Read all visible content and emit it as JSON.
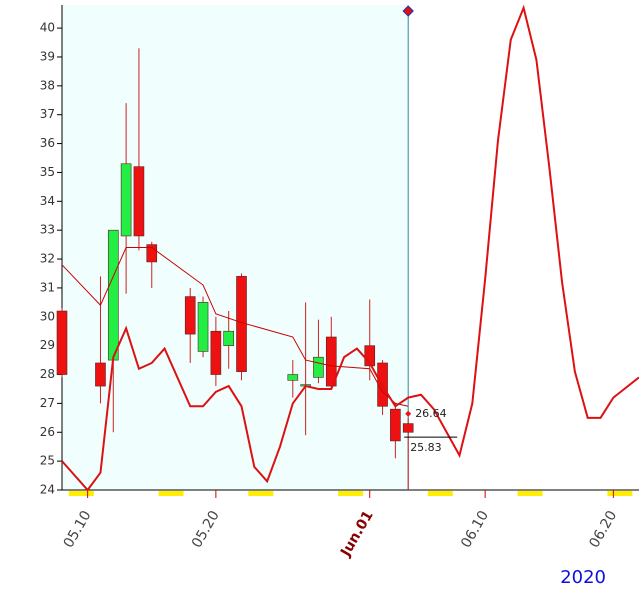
{
  "chart_data": {
    "type": "candlestick",
    "year_label": "2020",
    "xlim": [
      "2020-05-08",
      "2020-06-22"
    ],
    "xticks": [
      {
        "value": "2020-05-10",
        "label": "05.10"
      },
      {
        "value": "2020-05-20",
        "label": "05.20"
      },
      {
        "value": "2020-06-01",
        "label": "Jun.01"
      },
      {
        "value": "2020-06-10",
        "label": "06.10"
      },
      {
        "value": "2020-06-20",
        "label": "06.20"
      }
    ],
    "ylim": [
      24,
      40.8
    ],
    "yticks": [
      24,
      25,
      26,
      27,
      28,
      29,
      30,
      31,
      32,
      33,
      34,
      35,
      36,
      37,
      38,
      39,
      40
    ],
    "up_color": "#22ee44",
    "down_color": "#ee1111",
    "x": [
      "2020-05-08",
      "2020-05-11",
      "2020-05-12",
      "2020-05-13",
      "2020-05-14",
      "2020-05-15",
      "2020-05-18",
      "2020-05-19",
      "2020-05-20",
      "2020-05-21",
      "2020-05-22",
      "2020-05-26",
      "2020-05-27",
      "2020-05-28",
      "2020-05-29",
      "2020-06-01",
      "2020-06-02",
      "2020-06-03",
      "2020-06-04"
    ],
    "open": [
      30.2,
      28.4,
      28.5,
      32.8,
      35.2,
      32.5,
      30.7,
      28.8,
      29.5,
      29.0,
      31.4,
      27.8,
      27.6,
      27.9,
      29.3,
      29.0,
      28.4,
      26.8,
      26.3
    ],
    "high": [
      30.3,
      31.4,
      33.0,
      37.4,
      39.3,
      32.6,
      31.0,
      30.7,
      30.0,
      30.2,
      31.5,
      28.5,
      30.5,
      29.9,
      30.0,
      30.6,
      28.5,
      27.0,
      26.5
    ],
    "low": [
      27.9,
      27.0,
      26.0,
      30.8,
      32.3,
      31.0,
      28.4,
      28.6,
      27.6,
      28.2,
      27.8,
      27.2,
      25.9,
      27.7,
      27.5,
      27.8,
      26.6,
      25.1,
      24.0
    ],
    "close": [
      28.0,
      27.6,
      33.0,
      35.3,
      32.8,
      31.9,
      29.4,
      30.5,
      28.0,
      29.5,
      28.1,
      28.0,
      27.65,
      28.6,
      27.6,
      28.3,
      26.9,
      25.7,
      26.0
    ],
    "lines": [
      {
        "color": "#cc0000",
        "width": 1,
        "x": [
          "2020-05-08",
          "2020-05-11",
          "2020-05-13",
          "2020-05-15",
          "2020-05-19",
          "2020-05-20",
          "2020-05-22",
          "2020-05-26",
          "2020-05-27",
          "2020-05-29",
          "2020-06-01",
          "2020-06-02",
          "2020-06-03",
          "2020-06-04"
        ],
        "values": [
          31.8,
          30.4,
          32.4,
          32.4,
          31.1,
          30.1,
          29.8,
          29.3,
          28.5,
          28.3,
          28.2,
          27.4,
          27.0,
          26.9
        ]
      },
      {
        "color": "#dd1111",
        "width": 2,
        "x": [
          "2020-05-08",
          "2020-05-10",
          "2020-05-11",
          "2020-05-12",
          "2020-05-13",
          "2020-05-14",
          "2020-05-15",
          "2020-05-16",
          "2020-05-18",
          "2020-05-19",
          "2020-05-20",
          "2020-05-21",
          "2020-05-22",
          "2020-05-23",
          "2020-05-24",
          "2020-05-25",
          "2020-05-26",
          "2020-05-27",
          "2020-05-28",
          "2020-05-29",
          "2020-05-30",
          "2020-05-31",
          "2020-06-01",
          "2020-06-02",
          "2020-06-03",
          "2020-06-04",
          "2020-06-05",
          "2020-06-06",
          "2020-06-08",
          "2020-06-09",
          "2020-06-10",
          "2020-06-11",
          "2020-06-12",
          "2020-06-13",
          "2020-06-14",
          "2020-06-15",
          "2020-06-16",
          "2020-06-17",
          "2020-06-18",
          "2020-06-19",
          "2020-06-20",
          "2020-06-22"
        ],
        "values": [
          25.0,
          24.0,
          24.6,
          28.6,
          29.6,
          28.2,
          28.4,
          28.9,
          26.9,
          26.9,
          27.4,
          27.6,
          26.9,
          24.8,
          24.3,
          25.5,
          27.0,
          27.6,
          27.5,
          27.5,
          28.6,
          28.9,
          28.4,
          27.6,
          26.9,
          27.2,
          27.3,
          26.8,
          25.2,
          27.0,
          31.3,
          36.1,
          39.6,
          40.7,
          38.9,
          35.2,
          31.2,
          28.1,
          26.5,
          26.5,
          27.2,
          27.9
        ]
      }
    ],
    "markers": [
      {
        "value": 26.64,
        "color": "#ee1111"
      },
      {
        "value": 25.83,
        "color": "#000000"
      }
    ]
  }
}
